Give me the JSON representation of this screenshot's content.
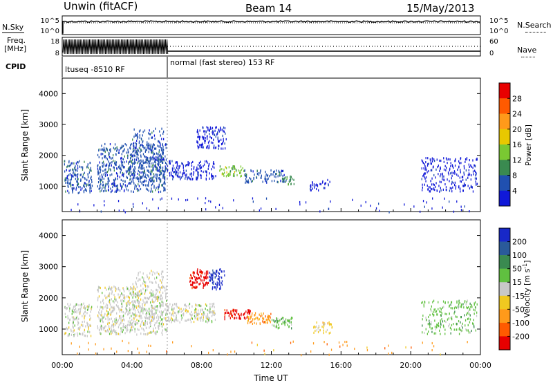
{
  "header": {
    "station": "Unwin (fitACF)",
    "beam": "Beam 14",
    "date": "15/May/2013"
  },
  "status_panels": {
    "nsky_label": "N.Sky",
    "nsky_ticks": [
      "10^5",
      "10^0"
    ],
    "nsearch_label": "N.Search",
    "nsearch_ticks": [
      "10^5",
      "10^0"
    ],
    "freq_label_1": "Freq.",
    "freq_label_2": "[MHz]",
    "freq_ticks": [
      "18",
      "8"
    ],
    "nave_label": "Nave",
    "nave_ticks": [
      "60",
      "0"
    ],
    "cpid_label": "CPID",
    "cpid_segments": [
      {
        "label": "ltuseq -8510 RF",
        "start_hour": 0,
        "end_hour": 6
      },
      {
        "label": "normal (fast stereo) 153 RF",
        "start_hour": 6,
        "end_hour": 24
      }
    ]
  },
  "chart_data": [
    {
      "type": "heatmap",
      "title": "",
      "xlabel": "",
      "ylabel": "Slant Range [km]",
      "x_range_hours": [
        0,
        24
      ],
      "ylim": [
        180,
        4500
      ],
      "y_ticks": [
        1000,
        2000,
        3000,
        4000
      ],
      "colorbar": {
        "label": "Power [dB]",
        "ticks": [
          "28",
          "24",
          "20",
          "16",
          "12",
          "8",
          "4"
        ],
        "colors": [
          "#e80000",
          "#ff5a00",
          "#ff9a1a",
          "#e8c800",
          "#7ac832",
          "#3a8a50",
          "#2050b0",
          "#1018d8"
        ]
      },
      "regions": [
        {
          "t0": 0.1,
          "t1": 1.7,
          "r0": 800,
          "r1": 1850,
          "level": 6,
          "density": 0.55
        },
        {
          "t0": 2.0,
          "t1": 6.0,
          "r0": 850,
          "r1": 2400,
          "level": 6,
          "density": 0.55
        },
        {
          "t0": 4.0,
          "t1": 5.8,
          "r0": 1200,
          "r1": 2900,
          "level": 6,
          "density": 0.3
        },
        {
          "t0": 6.0,
          "t1": 8.8,
          "r0": 1250,
          "r1": 1850,
          "level": 7,
          "density": 0.5
        },
        {
          "t0": 7.7,
          "t1": 9.4,
          "r0": 2250,
          "r1": 2950,
          "level": 7,
          "density": 0.55
        },
        {
          "t0": 9.0,
          "t1": 10.4,
          "r0": 1350,
          "r1": 1700,
          "level": 4,
          "density": 0.6
        },
        {
          "t0": 10.4,
          "t1": 12.8,
          "r0": 1150,
          "r1": 1550,
          "level": 6,
          "density": 0.5
        },
        {
          "t0": 12.6,
          "t1": 13.3,
          "r0": 1050,
          "r1": 1350,
          "level": 5,
          "density": 0.6
        },
        {
          "t0": 14.2,
          "t1": 15.4,
          "r0": 900,
          "r1": 1250,
          "level": 7,
          "density": 0.4
        },
        {
          "t0": 20.6,
          "t1": 23.8,
          "r0": 850,
          "r1": 1950,
          "level": 7,
          "density": 0.35
        },
        {
          "t0": 0.3,
          "t1": 23.7,
          "r0": 190,
          "r1": 650,
          "level": 7,
          "density": 0.035
        }
      ]
    },
    {
      "type": "heatmap",
      "title": "",
      "xlabel": "Time UT",
      "ylabel": "Slant Range [km]",
      "x_range_hours": [
        0,
        24
      ],
      "x_ticks": [
        "00:00",
        "04:00",
        "08:00",
        "12:00",
        "16:00",
        "20:00",
        "00:00"
      ],
      "ylim": [
        180,
        4500
      ],
      "y_ticks": [
        1000,
        2000,
        3000,
        4000
      ],
      "colorbar": {
        "label": "Velocity [m s^-1]",
        "ticks": [
          "200",
          "100",
          "50",
          "15",
          "-15",
          "-50",
          "-100",
          "-200"
        ],
        "colors": [
          "#1828c8",
          "#2a5a9a",
          "#3a8a50",
          "#60c040",
          "#c8c8c8",
          "#f0c820",
          "#ff9a1a",
          "#ff5a00",
          "#e80000"
        ]
      },
      "regions": [
        {
          "t0": 0.1,
          "t1": 1.7,
          "r0": 800,
          "r1": 1850,
          "level": 4,
          "density": 0.5
        },
        {
          "t0": 2.0,
          "t1": 6.0,
          "r0": 850,
          "r1": 2400,
          "level": 4,
          "density": 0.5
        },
        {
          "t0": 4.0,
          "t1": 5.8,
          "r0": 1200,
          "r1": 2900,
          "level": 4,
          "density": 0.3
        },
        {
          "t0": 6.0,
          "t1": 8.8,
          "r0": 1250,
          "r1": 1850,
          "level": 4,
          "density": 0.6
        },
        {
          "t0": 7.3,
          "t1": 8.4,
          "r0": 2350,
          "r1": 2950,
          "level": 8,
          "density": 0.7
        },
        {
          "t0": 8.4,
          "t1": 9.3,
          "r0": 2300,
          "r1": 2950,
          "level": 0,
          "density": 0.6
        },
        {
          "t0": 9.3,
          "t1": 10.8,
          "r0": 1350,
          "r1": 1650,
          "level": 8,
          "density": 0.75
        },
        {
          "t0": 10.6,
          "t1": 12.0,
          "r0": 1200,
          "r1": 1550,
          "level": 6,
          "density": 0.65
        },
        {
          "t0": 12.0,
          "t1": 13.2,
          "r0": 1050,
          "r1": 1400,
          "level": 3,
          "density": 0.65
        },
        {
          "t0": 14.3,
          "t1": 15.5,
          "r0": 900,
          "r1": 1250,
          "level": 5,
          "density": 0.45
        },
        {
          "t0": 20.6,
          "t1": 23.8,
          "r0": 850,
          "r1": 1950,
          "level": 3,
          "density": 0.3
        },
        {
          "t0": 0.3,
          "t1": 23.7,
          "r0": 190,
          "r1": 650,
          "level": 6,
          "density": 0.03
        }
      ]
    }
  ]
}
